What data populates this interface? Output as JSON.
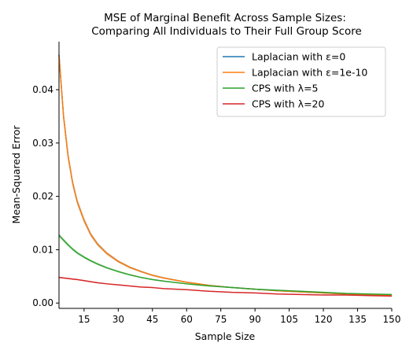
{
  "chart_data": {
    "type": "line",
    "title_line1": "MSE of Marginal Benefit Across Sample Sizes:",
    "title_line2": "Comparing All Individuals to Their Full Group Score",
    "xlabel": "Sample Size",
    "ylabel": "Mean-Squared Error",
    "xlim": [
      4,
      150
    ],
    "ylim": [
      -0.001,
      0.049
    ],
    "xticks": [
      15,
      30,
      45,
      60,
      75,
      90,
      105,
      120,
      135,
      150
    ],
    "xtick_labels": [
      "15",
      "30",
      "45",
      "60",
      "75",
      "90",
      "105",
      "120",
      "135",
      "150"
    ],
    "yticks": [
      0.0,
      0.01,
      0.02,
      0.03,
      0.04
    ],
    "ytick_labels": [
      "0.00",
      "0.01",
      "0.02",
      "0.03",
      "0.04"
    ],
    "grid": false,
    "legend_position": "top-right",
    "x": [
      4,
      6,
      8,
      10,
      12,
      15,
      18,
      21,
      25,
      30,
      35,
      40,
      45,
      50,
      60,
      70,
      80,
      90,
      100,
      110,
      120,
      130,
      140,
      150
    ],
    "series": [
      {
        "name": "Laplacian with ε=0",
        "color": "#1f77b4",
        "values": [
          0.0465,
          0.035,
          0.0275,
          0.0225,
          0.019,
          0.0155,
          0.0128,
          0.011,
          0.0093,
          0.0078,
          0.0067,
          0.0059,
          0.0052,
          0.0047,
          0.0039,
          0.0033,
          0.0029,
          0.0026,
          0.0023,
          0.0021,
          0.0019,
          0.0017,
          0.0016,
          0.0015
        ]
      },
      {
        "name": "Laplacian with ε=1e-10",
        "color": "#ff7f0e",
        "values": [
          0.0465,
          0.035,
          0.0275,
          0.0225,
          0.019,
          0.0155,
          0.0128,
          0.011,
          0.0093,
          0.0078,
          0.0067,
          0.0059,
          0.0052,
          0.0047,
          0.0039,
          0.0033,
          0.0029,
          0.0026,
          0.0023,
          0.0021,
          0.0019,
          0.0017,
          0.0016,
          0.0015
        ]
      },
      {
        "name": "CPS with λ=5",
        "color": "#2ca02c",
        "values": [
          0.0127,
          0.0118,
          0.0109,
          0.0101,
          0.0094,
          0.0086,
          0.0079,
          0.0073,
          0.0066,
          0.0059,
          0.0053,
          0.0048,
          0.0044,
          0.0041,
          0.0036,
          0.0032,
          0.0029,
          0.0026,
          0.0024,
          0.0022,
          0.002,
          0.0018,
          0.0017,
          0.0016
        ]
      },
      {
        "name": "CPS with λ=20",
        "color": "#d62728",
        "values": [
          0.0048,
          0.0047,
          0.0046,
          0.0045,
          0.0044,
          0.0042,
          0.004,
          0.0038,
          0.0036,
          0.0034,
          0.0032,
          0.003,
          0.0029,
          0.0027,
          0.0025,
          0.0022,
          0.002,
          0.0019,
          0.0017,
          0.0016,
          0.0015,
          0.0015,
          0.0014,
          0.0013
        ]
      }
    ]
  }
}
